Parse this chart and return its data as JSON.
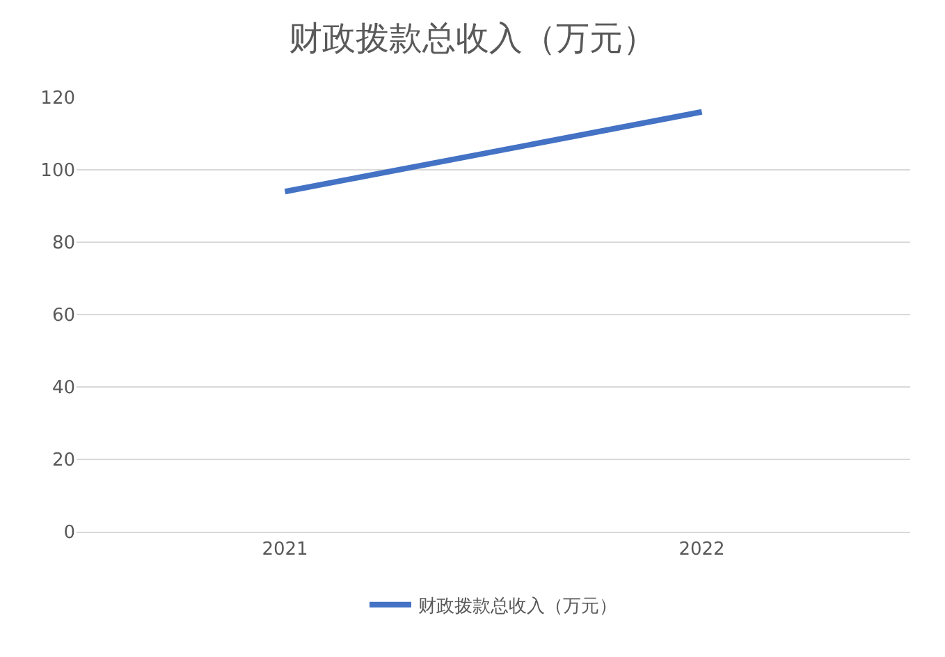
{
  "chart_data": {
    "type": "line",
    "title": "财政拨款总收入（万元）",
    "categories": [
      "2021",
      "2022"
    ],
    "series": [
      {
        "name": "财政拨款总收入（万元）",
        "color": "#4472c4",
        "values": [
          94,
          116
        ]
      }
    ],
    "ylim": [
      0,
      120
    ],
    "yticks": [
      0,
      20,
      40,
      60,
      80,
      100,
      120
    ],
    "grid": "y",
    "legend": "bottom",
    "marker": "none",
    "line_style": "solid"
  }
}
